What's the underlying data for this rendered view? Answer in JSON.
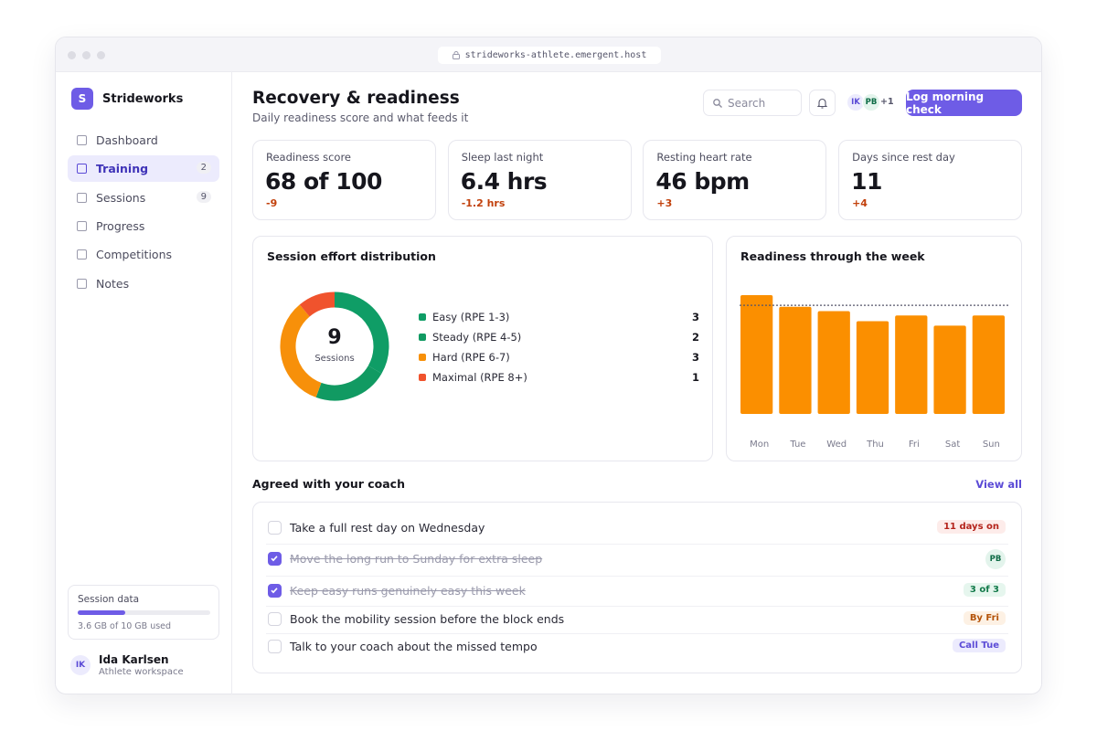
{
  "browser": {
    "url": "strideworks-athlete.emergent.host"
  },
  "sidebar": {
    "brand_initial": "S",
    "brand": "Strideworks",
    "nav": [
      {
        "label": "Dashboard"
      },
      {
        "label": "Training",
        "badge": 2,
        "active": true
      },
      {
        "label": "Sessions",
        "badge": 9
      },
      {
        "label": "Progress"
      },
      {
        "label": "Competitions"
      },
      {
        "label": "Notes"
      }
    ],
    "storage": {
      "title": "Session data",
      "used": 3.6,
      "total": 10,
      "label": "3.6 GB of 10 GB used"
    },
    "user": {
      "initials": "IK",
      "name": "Ida Karlsen",
      "role": "Athlete workspace"
    }
  },
  "header": {
    "title": "Recovery & readiness",
    "subtitle": "Daily readiness score and what feeds it",
    "search": "Search",
    "avatars": [
      "IK",
      "PB"
    ],
    "more": "+1",
    "action": "Log morning check"
  },
  "kpis": [
    {
      "label": "Readiness score",
      "value": "68 of 100",
      "delta": "-9"
    },
    {
      "label": "Sleep last night",
      "value": "6.4 hrs",
      "delta": "-1.2 hrs"
    },
    {
      "label": "Resting heart rate",
      "value": "46 bpm",
      "delta": "+3"
    },
    {
      "label": "Days since rest day",
      "value": "11",
      "delta": "+4"
    }
  ],
  "chart_data": [
    {
      "type": "pie",
      "title": "Session effort distribution",
      "categories": [
        "Easy (RPE 1-3)",
        "Steady (RPE 4-5)",
        "Hard (RPE 6-7)",
        "Maximal (RPE 8+)"
      ],
      "values": [
        3,
        2,
        3,
        1
      ],
      "colors": [
        "#0f9d66",
        "#119a62",
        "#f7900a",
        "#f0532d"
      ],
      "center_value": 9,
      "center_label": "Sessions"
    },
    {
      "type": "bar",
      "title": "Readiness through the week",
      "categories": [
        "Mon",
        "Tue",
        "Wed",
        "Thu",
        "Fri",
        "Sat",
        "Sun"
      ],
      "values": [
        82,
        74,
        71,
        64,
        68,
        61,
        68
      ],
      "color": "#fb8f00",
      "ylim": [
        0,
        100
      ],
      "reference_line": 75
    }
  ],
  "coach": {
    "title": "Agreed with your coach",
    "link": "View all",
    "items": [
      {
        "text": "Take a full rest day on Wednesday",
        "done": false,
        "tag": "11 days on",
        "tone": "red"
      },
      {
        "text": "Move the long run to Sunday for extra sleep",
        "done": true,
        "tag": "PB",
        "tone": "avatar"
      },
      {
        "text": "Keep easy runs genuinely easy this week",
        "done": true,
        "tag": "3 of 3",
        "tone": "green"
      },
      {
        "text": "Book the mobility session before the block ends",
        "done": false,
        "tag": "By Fri",
        "tone": "orange"
      },
      {
        "text": "Talk to your coach about the missed tempo",
        "done": false,
        "tag": "Call Tue",
        "tone": "purple"
      }
    ]
  }
}
